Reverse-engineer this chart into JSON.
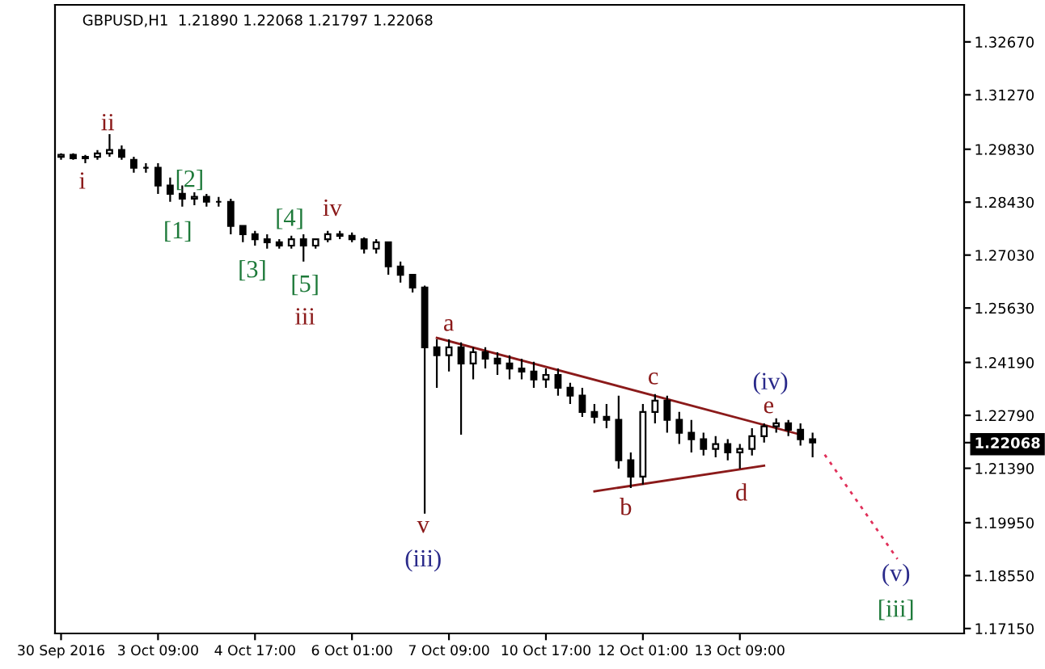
{
  "chart_data": {
    "type": "candlestick",
    "title": "GBPUSD,H1  1.21890 1.22068 1.21797 1.22068",
    "color": "#000000",
    "categories": [
      "30 Sep 2016",
      null,
      null,
      null,
      null,
      null,
      null,
      null,
      "3 Oct 09:00",
      null,
      null,
      null,
      null,
      null,
      null,
      null,
      "4 Oct 17:00",
      null,
      null,
      null,
      null,
      null,
      null,
      null,
      "6 Oct 01:00",
      null,
      null,
      null,
      null,
      null,
      null,
      null,
      "7 Oct 09:00",
      null,
      null,
      null,
      null,
      null,
      null,
      null,
      "10 Oct 17:00",
      null,
      null,
      null,
      null,
      null,
      null,
      null,
      "12 Oct 01:00",
      null,
      null,
      null,
      null,
      null,
      null,
      null,
      "13 Oct 09:00",
      null,
      null,
      null,
      null,
      null,
      null,
      null,
      null,
      null,
      null,
      null,
      null,
      null,
      null,
      null,
      null,
      null,
      null
    ],
    "ohlc": [
      [
        1.2963,
        1.2972,
        1.2955,
        1.2968
      ],
      [
        1.2968,
        1.2972,
        1.2955,
        1.2959
      ],
      [
        1.2959,
        1.2968,
        1.2946,
        1.2963
      ],
      [
        1.2963,
        1.2981,
        1.2955,
        1.2972
      ],
      [
        1.2972,
        1.3023,
        1.2963,
        1.2981
      ],
      [
        1.2981,
        1.2993,
        1.2955,
        1.2963
      ],
      [
        1.2955,
        1.2963,
        1.2921,
        1.2934
      ],
      [
        1.2934,
        1.2946,
        1.2921,
        1.2934
      ],
      [
        1.2934,
        1.2946,
        1.2865,
        1.2887
      ],
      [
        1.2887,
        1.2908,
        1.2844,
        1.2865
      ],
      [
        1.2865,
        1.2887,
        1.2831,
        1.2852
      ],
      [
        1.2852,
        1.2869,
        1.2835,
        1.2857
      ],
      [
        1.2857,
        1.2865,
        1.2831,
        1.2844
      ],
      [
        1.2844,
        1.2857,
        1.2831,
        1.2844
      ],
      [
        1.2844,
        1.2852,
        1.2758,
        1.278
      ],
      [
        1.278,
        1.278,
        1.2737,
        1.2758
      ],
      [
        1.2758,
        1.2767,
        1.2728,
        1.2745
      ],
      [
        1.2745,
        1.2758,
        1.272,
        1.2737
      ],
      [
        1.2737,
        1.2745,
        1.272,
        1.2728
      ],
      [
        1.2728,
        1.2754,
        1.272,
        1.2745
      ],
      [
        1.2745,
        1.2758,
        1.2686,
        1.2728
      ],
      [
        1.2728,
        1.2745,
        1.272,
        1.2745
      ],
      [
        1.2745,
        1.2767,
        1.2737,
        1.2758
      ],
      [
        1.2758,
        1.2767,
        1.2745,
        1.2754
      ],
      [
        1.2754,
        1.2763,
        1.2737,
        1.2745
      ],
      [
        1.2745,
        1.275,
        1.2707,
        1.272
      ],
      [
        1.272,
        1.2745,
        1.2707,
        1.2737
      ],
      [
        1.2737,
        1.2737,
        1.2651,
        1.2673
      ],
      [
        1.2673,
        1.2686,
        1.263,
        1.2651
      ],
      [
        1.2651,
        1.2651,
        1.2604,
        1.2617
      ],
      [
        1.2617,
        1.2622,
        1.2019,
        1.2459
      ],
      [
        1.2459,
        1.248,
        1.2352,
        1.2438
      ],
      [
        1.2438,
        1.248,
        1.2395,
        1.2459
      ],
      [
        1.2459,
        1.2472,
        1.2228,
        1.2416
      ],
      [
        1.2416,
        1.2459,
        1.2374,
        1.2446
      ],
      [
        1.2446,
        1.2459,
        1.2403,
        1.2429
      ],
      [
        1.2429,
        1.2446,
        1.2386,
        1.2416
      ],
      [
        1.2416,
        1.2438,
        1.2374,
        1.2403
      ],
      [
        1.2403,
        1.2429,
        1.2374,
        1.2395
      ],
      [
        1.2395,
        1.2421,
        1.2352,
        1.2374
      ],
      [
        1.2374,
        1.2403,
        1.2352,
        1.2386
      ],
      [
        1.2386,
        1.2403,
        1.2331,
        1.2352
      ],
      [
        1.2352,
        1.2365,
        1.2309,
        1.2331
      ],
      [
        1.2331,
        1.2352,
        1.2275,
        1.2288
      ],
      [
        1.2288,
        1.2309,
        1.2258,
        1.2275
      ],
      [
        1.2275,
        1.2309,
        1.2245,
        1.2267
      ],
      [
        1.2267,
        1.2331,
        1.2138,
        1.216
      ],
      [
        1.216,
        1.2181,
        1.2087,
        1.2117
      ],
      [
        1.2117,
        1.2309,
        1.2096,
        1.2288
      ],
      [
        1.2288,
        1.2335,
        1.2258,
        1.2318
      ],
      [
        1.2318,
        1.2331,
        1.2233,
        1.2267
      ],
      [
        1.2267,
        1.2288,
        1.2203,
        1.2233
      ],
      [
        1.2233,
        1.2267,
        1.2181,
        1.2216
      ],
      [
        1.2216,
        1.2233,
        1.2173,
        1.219
      ],
      [
        1.219,
        1.2224,
        1.2168,
        1.2203
      ],
      [
        1.2203,
        1.2216,
        1.216,
        1.2181
      ],
      [
        1.2181,
        1.2203,
        1.2138,
        1.219
      ],
      [
        1.219,
        1.2245,
        1.2173,
        1.2224
      ],
      [
        1.2224,
        1.2258,
        1.2207,
        1.225
      ],
      [
        1.225,
        1.2271,
        1.2233,
        1.2258
      ],
      [
        1.2258,
        1.2267,
        1.2224,
        1.2241
      ],
      [
        1.2241,
        1.2258,
        1.2199,
        1.2216
      ],
      [
        1.2216,
        1.2233,
        1.2168,
        1.2207
      ],
      null,
      null,
      null,
      null,
      null,
      null,
      null,
      null,
      null,
      null,
      null,
      null
    ],
    "series": [
      {
        "type": "line",
        "values": [
          null,
          null,
          null,
          null,
          null,
          null,
          null,
          null,
          null,
          null,
          null,
          null,
          null,
          null,
          null,
          null,
          null,
          null,
          null,
          null,
          null,
          null,
          null,
          null,
          null,
          null,
          null,
          null,
          null,
          null,
          null,
          1.2484,
          null,
          null,
          null,
          null,
          null,
          null,
          null,
          null,
          null,
          null,
          null,
          null,
          null,
          null,
          null,
          null,
          null,
          null,
          null,
          null,
          null,
          null,
          null,
          null,
          null,
          null,
          null,
          null,
          null,
          1.2228,
          null,
          null,
          null,
          null,
          null,
          null,
          null,
          null,
          null,
          null,
          null,
          null,
          null
        ],
        "color": "#8b1a1a",
        "line_style": "solid"
      },
      {
        "type": "line",
        "values": [
          null,
          null,
          null,
          null,
          null,
          null,
          null,
          null,
          null,
          null,
          null,
          null,
          null,
          null,
          null,
          null,
          null,
          null,
          null,
          null,
          null,
          null,
          null,
          null,
          null,
          null,
          null,
          null,
          null,
          null,
          null,
          null,
          null,
          null,
          null,
          null,
          null,
          null,
          null,
          null,
          null,
          null,
          null,
          null,
          1.2078,
          null,
          null,
          null,
          null,
          null,
          null,
          null,
          null,
          null,
          null,
          null,
          null,
          null,
          1.2146,
          null,
          null,
          null,
          null,
          null,
          null,
          null,
          null,
          null,
          null,
          null,
          null,
          null,
          null,
          null,
          null
        ],
        "color": "#8b1a1a",
        "line_style": "solid"
      },
      {
        "type": "line",
        "values": [
          null,
          null,
          null,
          null,
          null,
          null,
          null,
          null,
          null,
          null,
          null,
          null,
          null,
          null,
          null,
          null,
          null,
          null,
          null,
          null,
          null,
          null,
          null,
          null,
          null,
          null,
          null,
          null,
          null,
          null,
          null,
          null,
          null,
          null,
          null,
          null,
          null,
          null,
          null,
          null,
          null,
          null,
          null,
          null,
          null,
          null,
          null,
          null,
          null,
          null,
          null,
          null,
          null,
          null,
          null,
          null,
          null,
          null,
          null,
          null,
          null,
          null,
          null,
          1.2175,
          null,
          null,
          null,
          null,
          null,
          1.1899,
          null,
          null,
          null,
          null,
          null
        ],
        "color": "#e0305a",
        "line_style": "dotted"
      }
    ],
    "annotations": [
      "i",
      "ii",
      "[1]",
      "[2]",
      "[3]",
      "[4]",
      "[5]",
      "iii",
      "iv",
      "a",
      "v",
      "(iii)",
      "b",
      "c",
      "d",
      "(iv)",
      "e",
      "(v)",
      "[iii]"
    ],
    "ylim": [
      1.1702,
      1.3365
    ],
    "yticks": [
      {
        "value": 1.3267,
        "label": "1.32670"
      },
      {
        "value": 1.3127,
        "label": "1.31270"
      },
      {
        "value": 1.2983,
        "label": "1.29830"
      },
      {
        "value": 1.2843,
        "label": "1.28430"
      },
      {
        "value": 1.2703,
        "label": "1.27030"
      },
      {
        "value": 1.2563,
        "label": "1.25630"
      },
      {
        "value": 1.2419,
        "label": "1.24190"
      },
      {
        "value": 1.2279,
        "label": "1.22790"
      },
      {
        "value": 1.2139,
        "label": "1.21390"
      },
      {
        "value": 1.1995,
        "label": "1.19950"
      },
      {
        "value": 1.1855,
        "label": "1.18550"
      },
      {
        "value": 1.1715,
        "label": "1.17150"
      },
      {
        "value": 1.22068,
        "label": "1.22068"
      }
    ],
    "grid": false,
    "legend": false
  }
}
